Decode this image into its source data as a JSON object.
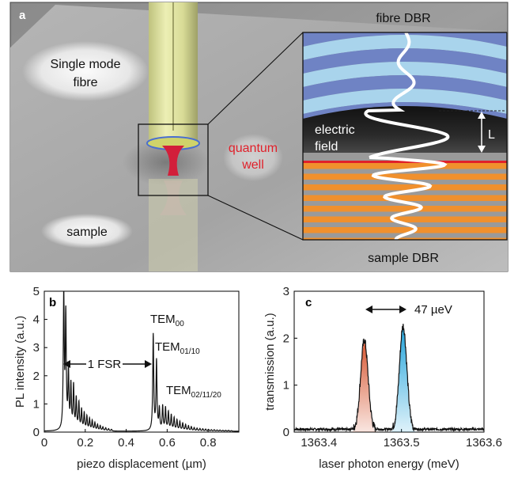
{
  "figure": {
    "panel_a": {
      "letter": "a",
      "label_fibre": [
        "Single mode",
        "fibre"
      ],
      "label_sample": "sample",
      "label_quantum_well": [
        "quantum",
        "well"
      ],
      "label_fibre_dbr": "fibre DBR",
      "label_sample_dbr": "sample DBR",
      "label_electric_field": [
        "electric",
        "field"
      ],
      "label_gap": "L",
      "colors": {
        "fibre_dbr_light": "#a9d4ec",
        "fibre_dbr_dark": "#6f83c4",
        "sample_dbr_orange": "#f0902d",
        "sample_dbr_grey": "#9a9a9a",
        "quantum_well": "#e0202a",
        "field_line": "#ffffff",
        "background": "#7f7f7f"
      }
    },
    "panel_b": {
      "letter": "b",
      "annotations": {
        "fsr": "1 FSR",
        "tem00_base": "TEM",
        "tem00_sub": "00",
        "tem0110_base": "TEM",
        "tem0110_sub": "01/10",
        "tem021120_base": "TEM",
        "tem021120_sub": "02/11/20"
      }
    },
    "panel_c": {
      "letter": "c",
      "linewidth_annotation": "47 µeV"
    }
  },
  "chart_data": [
    {
      "type": "line",
      "panel": "b",
      "xlabel": "piezo displacement (µm)",
      "ylabel": "PL intensity (a.u.)",
      "xlim": [
        0,
        0.95
      ],
      "ylim": [
        0,
        5
      ],
      "xticks": [
        0,
        0.2,
        0.4,
        0.6,
        0.8
      ],
      "xtick_labels": [
        "0",
        "0.2",
        "0.4",
        "0.6",
        "0.8"
      ],
      "yticks": [
        0,
        1,
        2,
        3,
        4,
        5
      ],
      "ytick_labels": [
        "0",
        "1",
        "2",
        "3",
        "4",
        "5"
      ],
      "series": [
        {
          "peaks_x": [
            0.095,
            0.105,
            0.118,
            0.13,
            0.143,
            0.156,
            0.169,
            0.182,
            0.195,
            0.208,
            0.221,
            0.234,
            0.247,
            0.26,
            0.273,
            0.286,
            0.3,
            0.314,
            0.328,
            0.532,
            0.548,
            0.562,
            0.578,
            0.592,
            0.606,
            0.62,
            0.634,
            0.648,
            0.662,
            0.676,
            0.69,
            0.704,
            0.718,
            0.732,
            0.746,
            0.76,
            0.774,
            0.788,
            0.802,
            0.816,
            0.83,
            0.844,
            0.858,
            0.872,
            0.886,
            0.9,
            0.914
          ],
          "peaks_y": [
            4.8,
            4.0,
            2.0,
            1.55,
            1.55,
            1.1,
            0.95,
            0.72,
            0.6,
            0.5,
            0.42,
            0.35,
            0.28,
            0.22,
            0.18,
            0.14,
            0.11,
            0.08,
            0.06,
            3.4,
            2.45,
            0.75,
            0.85,
            0.8,
            0.65,
            0.55,
            0.45,
            0.38,
            0.32,
            0.27,
            0.22,
            0.18,
            0.15,
            0.12,
            0.1,
            0.09,
            0.08,
            0.07,
            0.06,
            0.05,
            0.05,
            0.04,
            0.04,
            0.03,
            0.03,
            0.03,
            0.02
          ]
        }
      ]
    },
    {
      "type": "area",
      "panel": "c",
      "xlabel": "laser photon energy (meV)",
      "ylabel": "transmission (a.u.)",
      "xlim": [
        1363.37,
        1363.6
      ],
      "ylim": [
        0,
        3
      ],
      "xticks": [
        1363.4,
        1363.5,
        1363.6
      ],
      "xtick_labels": [
        "1363.4",
        "1363.5",
        "1363.6"
      ],
      "yticks": [
        0,
        1,
        2,
        3
      ],
      "ytick_labels": [
        "0",
        "1",
        "2",
        "3"
      ],
      "series": [
        {
          "center": 1363.455,
          "peak": 1.9,
          "width": 0.0045,
          "color": "#d85a36"
        },
        {
          "center": 1363.502,
          "peak": 2.2,
          "width": 0.0045,
          "color": "#27a6dc"
        }
      ]
    }
  ]
}
